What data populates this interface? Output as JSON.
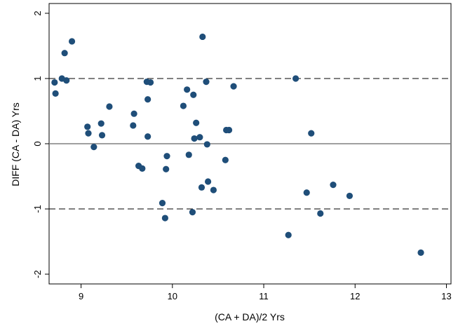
{
  "chart_data": {
    "type": "scatter",
    "title": "",
    "xlabel": "(CA + DA)/2 Yrs",
    "ylabel": "DIFF (CA - DA) Yrs",
    "xlim": [
      8.65,
      13.05
    ],
    "ylim": [
      -2.15,
      2.15
    ],
    "x_ticks": [
      9,
      10,
      11,
      12,
      13
    ],
    "y_ticks": [
      -2,
      -1,
      0,
      1,
      2
    ],
    "x_tick_labels": [
      "9",
      "10",
      "11",
      "12",
      "13"
    ],
    "y_tick_labels": [
      "-2",
      "-1",
      "0",
      "1",
      "2"
    ],
    "grid": false,
    "reference_lines": [
      {
        "y": 0,
        "style": "solid",
        "color": "#808080"
      },
      {
        "y": 1.0,
        "style": "dashed",
        "color": "#000000"
      },
      {
        "y": -1.0,
        "style": "dashed",
        "color": "#000000"
      }
    ],
    "marker_color": "#1f4e79",
    "points": [
      {
        "x": 8.71,
        "y": 0.94
      },
      {
        "x": 8.72,
        "y": 0.77
      },
      {
        "x": 8.79,
        "y": 1.0
      },
      {
        "x": 8.82,
        "y": 1.39
      },
      {
        "x": 8.84,
        "y": 0.97
      },
      {
        "x": 8.9,
        "y": 1.57
      },
      {
        "x": 9.07,
        "y": 0.26
      },
      {
        "x": 9.08,
        "y": 0.16
      },
      {
        "x": 9.14,
        "y": -0.05
      },
      {
        "x": 9.22,
        "y": 0.31
      },
      {
        "x": 9.23,
        "y": 0.13
      },
      {
        "x": 9.31,
        "y": 0.57
      },
      {
        "x": 9.57,
        "y": 0.28
      },
      {
        "x": 9.58,
        "y": 0.46
      },
      {
        "x": 9.63,
        "y": -0.34
      },
      {
        "x": 9.67,
        "y": -0.38
      },
      {
        "x": 9.72,
        "y": 0.95
      },
      {
        "x": 9.73,
        "y": 0.68
      },
      {
        "x": 9.73,
        "y": 0.11
      },
      {
        "x": 9.76,
        "y": 0.94
      },
      {
        "x": 9.89,
        "y": -0.91
      },
      {
        "x": 9.92,
        "y": -1.14
      },
      {
        "x": 9.93,
        "y": -0.39
      },
      {
        "x": 9.94,
        "y": -0.19
      },
      {
        "x": 10.12,
        "y": 0.58
      },
      {
        "x": 10.16,
        "y": 0.83
      },
      {
        "x": 10.18,
        "y": -0.17
      },
      {
        "x": 10.22,
        "y": -1.05
      },
      {
        "x": 10.23,
        "y": 0.75
      },
      {
        "x": 10.24,
        "y": 0.08
      },
      {
        "x": 10.26,
        "y": 0.32
      },
      {
        "x": 10.3,
        "y": 0.1
      },
      {
        "x": 10.32,
        "y": -0.67
      },
      {
        "x": 10.33,
        "y": 1.64
      },
      {
        "x": 10.37,
        "y": 0.95
      },
      {
        "x": 10.38,
        "y": -0.01
      },
      {
        "x": 10.39,
        "y": -0.58
      },
      {
        "x": 10.45,
        "y": -0.71
      },
      {
        "x": 10.58,
        "y": -0.25
      },
      {
        "x": 10.59,
        "y": 0.21
      },
      {
        "x": 10.62,
        "y": 0.21
      },
      {
        "x": 10.67,
        "y": 0.88
      },
      {
        "x": 11.27,
        "y": -1.4
      },
      {
        "x": 11.35,
        "y": 1.0
      },
      {
        "x": 11.47,
        "y": -0.75
      },
      {
        "x": 11.52,
        "y": 0.16
      },
      {
        "x": 11.62,
        "y": -1.07
      },
      {
        "x": 11.76,
        "y": -0.63
      },
      {
        "x": 11.94,
        "y": -0.8
      },
      {
        "x": 12.72,
        "y": -1.67
      }
    ]
  }
}
